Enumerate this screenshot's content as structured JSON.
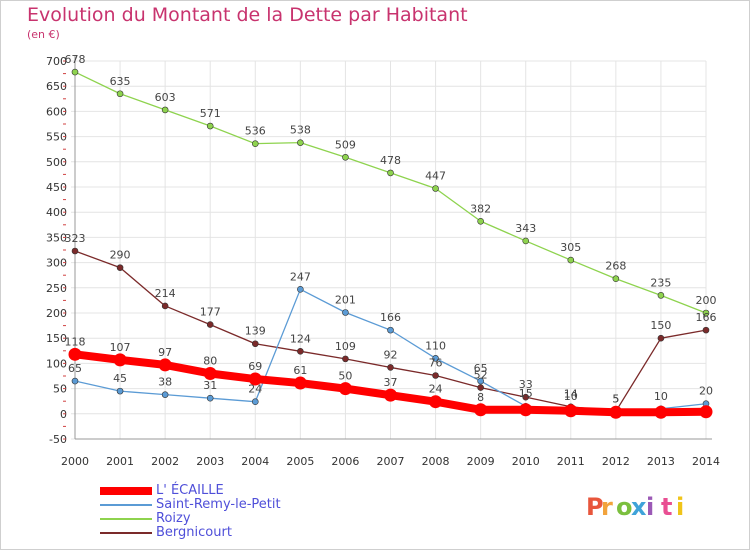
{
  "header": {
    "title": "Evolution du Montant de la Dette par Habitant",
    "subtitle": "(en €)"
  },
  "logo": {
    "text": "Proxiti",
    "colors": [
      "#e8563c",
      "#f2a33c",
      "#7bbf3e",
      "#3fa3d9",
      "#9b59b6",
      "#e94f93",
      "#f0c419"
    ]
  },
  "chart_data": {
    "type": "line",
    "title": "Evolution du Montant de la Dette par Habitant",
    "subtitle": "(en €)",
    "x": [
      "2000",
      "2001",
      "2002",
      "2003",
      "2004",
      "2005",
      "2006",
      "2007",
      "2008",
      "2009",
      "2010",
      "2011",
      "2012",
      "2013",
      "2014"
    ],
    "ylim": [
      -50,
      700
    ],
    "yticks": [
      -50,
      0,
      50,
      100,
      150,
      200,
      250,
      300,
      350,
      400,
      450,
      500,
      550,
      600,
      650,
      700
    ],
    "grid": true,
    "legend_position": "bottom-left",
    "series": [
      {
        "name": "L' ÉCAILLE",
        "color": "#ff0000",
        "values": [
          118,
          107,
          97,
          80,
          69,
          61,
          50,
          37,
          24,
          8,
          8,
          6,
          3,
          3,
          4
        ],
        "labels": [
          "118",
          "107",
          "97",
          "80",
          "69",
          "61",
          "50",
          "37",
          "24",
          "8",
          "",
          "",
          "",
          "",
          ""
        ]
      },
      {
        "name": "Saint-Remy-le-Petit",
        "color": "#5b9bd5",
        "values": [
          65,
          45,
          38,
          31,
          24,
          247,
          201,
          166,
          110,
          65,
          15,
          10,
          5,
          10,
          20
        ],
        "labels": [
          "65",
          "45",
          "38",
          "31",
          "24",
          "247",
          "201",
          "166",
          "110",
          "65",
          "15",
          "10",
          "5",
          "10",
          "20"
        ]
      },
      {
        "name": "Roizy",
        "color": "#8ed34e",
        "values": [
          678,
          635,
          603,
          571,
          536,
          538,
          509,
          478,
          447,
          382,
          343,
          305,
          268,
          235,
          200
        ],
        "labels": [
          "678",
          "635",
          "603",
          "571",
          "536",
          "538",
          "509",
          "478",
          "447",
          "382",
          "343",
          "305",
          "268",
          "235",
          "200"
        ]
      },
      {
        "name": "Bergnicourt",
        "color": "#7b2a2a",
        "values": [
          323,
          290,
          214,
          177,
          139,
          124,
          109,
          92,
          76,
          52,
          33,
          14,
          5,
          150,
          166
        ],
        "labels": [
          "323",
          "290",
          "214",
          "177",
          "139",
          "124",
          "109",
          "92",
          "76",
          "52",
          "33",
          "14",
          "5",
          "150",
          "166"
        ]
      }
    ]
  }
}
